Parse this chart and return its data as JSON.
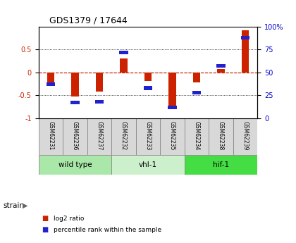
{
  "title": "GDS1379 / 17644",
  "samples": [
    "GSM62231",
    "GSM62236",
    "GSM62237",
    "GSM62232",
    "GSM62233",
    "GSM62235",
    "GSM62234",
    "GSM62238",
    "GSM62239"
  ],
  "log2_ratio": [
    -0.28,
    -0.52,
    -0.42,
    0.3,
    -0.18,
    -0.75,
    -0.22,
    0.08,
    0.92
  ],
  "percentile_rank": [
    37,
    17,
    18,
    72,
    33,
    12,
    28,
    57,
    88
  ],
  "groups": [
    {
      "label": "wild type",
      "start": 0,
      "end": 3,
      "color": "#aae8aa"
    },
    {
      "label": "vhl-1",
      "start": 3,
      "end": 6,
      "color": "#ccf0cc"
    },
    {
      "label": "hif-1",
      "start": 6,
      "end": 9,
      "color": "#44dd44"
    }
  ],
  "left_ylim": [
    -1,
    1
  ],
  "right_ylim": [
    0,
    100
  ],
  "left_yticks": [
    -1,
    -0.5,
    0,
    0.5
  ],
  "right_yticks": [
    0,
    25,
    50,
    75,
    100
  ],
  "right_yticklabels": [
    "0",
    "25",
    "50",
    "75",
    "100%"
  ],
  "left_color": "#cc2200",
  "right_color": "#0000cc",
  "bar_color_red": "#cc2200",
  "bar_color_blue": "#2222cc",
  "sample_bg": "#d8d8d8",
  "legend_red": "log2 ratio",
  "legend_blue": "percentile rank within the sample"
}
